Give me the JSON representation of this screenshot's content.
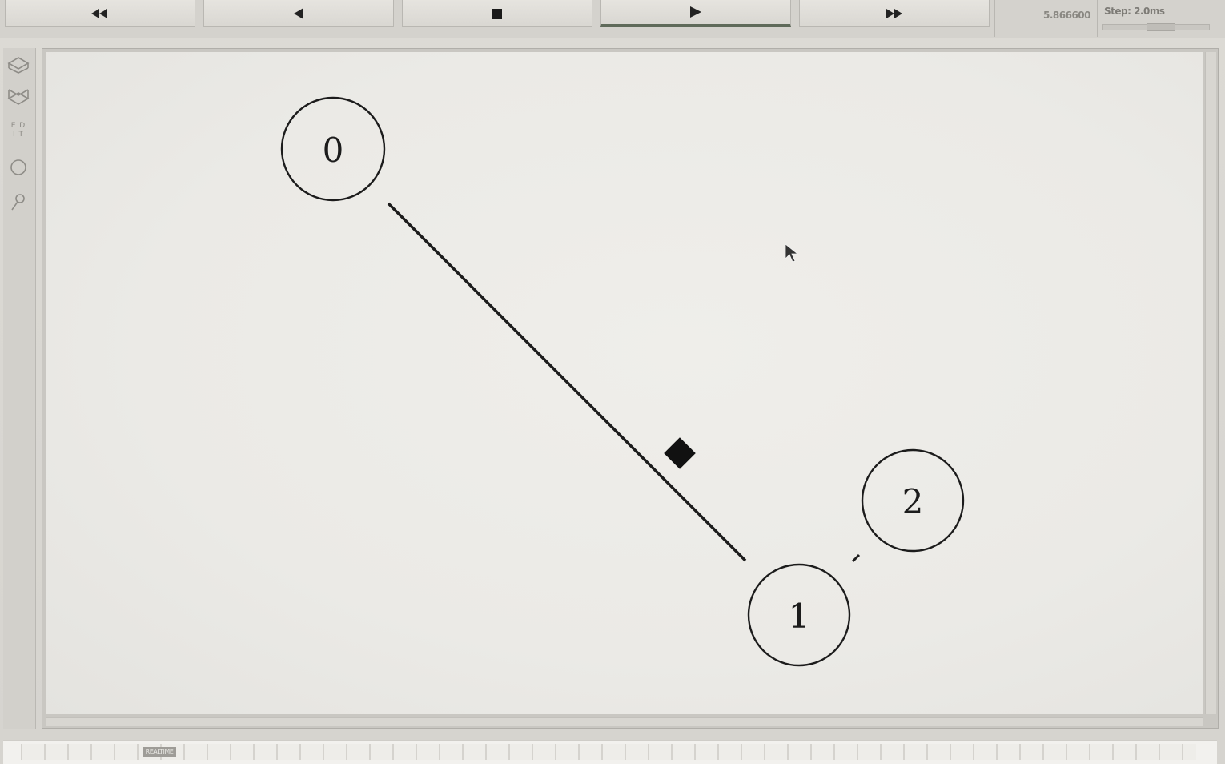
{
  "toolbar": {
    "buttons": [
      {
        "name": "rewind-button",
        "icon": "rewind-icon"
      },
      {
        "name": "step-back-button",
        "icon": "step-back-icon"
      },
      {
        "name": "stop-button",
        "icon": "stop-icon"
      },
      {
        "name": "play-button",
        "icon": "play-icon",
        "active": true
      },
      {
        "name": "fast-forward-button",
        "icon": "fast-forward-icon"
      }
    ],
    "time": "5.866600",
    "step_label": "Step: 2.0ms"
  },
  "palette": {
    "tools": [
      {
        "name": "edit-tool-up",
        "icon": "layer-up-icon"
      },
      {
        "name": "edit-tool-down",
        "icon": "layer-down-icon"
      },
      {
        "name": "edit-text-tool",
        "text": "ED\nI T"
      },
      {
        "name": "node-tool",
        "icon": "circle-icon"
      },
      {
        "name": "link-tool",
        "icon": "link-icon"
      }
    ]
  },
  "canvas": {
    "nodes": [
      {
        "id": "0",
        "label": "0"
      },
      {
        "id": "1",
        "label": "1"
      },
      {
        "id": "2",
        "label": "2"
      }
    ],
    "links": [
      {
        "from": "0",
        "to": "1"
      },
      {
        "from": "1",
        "to": "2"
      }
    ],
    "packets": [
      {
        "link": "0-1",
        "shape": "diamond"
      }
    ]
  },
  "timeline": {
    "marker_label": "REALTIME"
  },
  "colors": {
    "background": "#d6d4cf",
    "canvas": "#ecebe7",
    "stroke": "#1c1c1c"
  }
}
